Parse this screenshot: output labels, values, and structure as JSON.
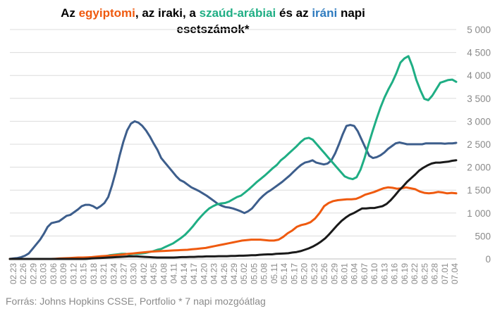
{
  "title": {
    "segments": [
      {
        "text": "Az ",
        "color": "#000000"
      },
      {
        "text": "egyiptomi",
        "color": "#ef5a0f"
      },
      {
        "text": ", az iraki, a ",
        "color": "#000000"
      },
      {
        "text": "szaúd-arábiai",
        "color": "#1fae84"
      },
      {
        "text": " és az ",
        "color": "#000000"
      },
      {
        "text": "iráni",
        "color": "#2e7bbf"
      },
      {
        "text": " napi",
        "color": "#000000"
      }
    ],
    "line2": "esetszámok*"
  },
  "source": "Forrás: Johns Hopkins CSSE, Portfolio   * 7 napi mozgóátlag",
  "chart_data": {
    "type": "line",
    "title": "Az egyiptomi, az iraki, a szaúd-arábiai és az iráni napi esetszámok*",
    "x_tick_labels": [
      "02.23",
      "02.26",
      "02.29",
      "03.03",
      "03.06",
      "03.09",
      "03.12",
      "03.15",
      "03.18",
      "03.21",
      "03.24",
      "03.27",
      "03.30",
      "04.02",
      "04.05",
      "04.08",
      "04.11",
      "04.14",
      "04.17",
      "04.20",
      "04.23",
      "04.26",
      "04.29",
      "05.02",
      "05.05",
      "05.08",
      "05.11",
      "05.14",
      "05.17",
      "05.20",
      "05.23",
      "05.26",
      "05.29",
      "06.01",
      "06.04",
      "06.07",
      "06.10",
      "06.13",
      "06.16",
      "06.19",
      "06.22",
      "06.25",
      "06.28",
      "07.01",
      "07.04"
    ],
    "ylim": [
      0,
      5000
    ],
    "y_ticks": [
      0,
      500,
      1000,
      1500,
      2000,
      2500,
      3000,
      3500,
      4000,
      4500,
      5000
    ],
    "y_tick_labels": [
      "0",
      "500",
      "1 000",
      "1 500",
      "2 000",
      "2 500",
      "3 000",
      "3 500",
      "4 000",
      "4 500",
      "5 000"
    ],
    "y_axis_position": "right",
    "grid": true,
    "series": [
      {
        "key": "iran",
        "color": "#3d5e8c",
        "values": [
          0,
          10,
          20,
          40,
          70,
          120,
          220,
          320,
          420,
          550,
          700,
          780,
          800,
          820,
          880,
          940,
          960,
          1020,
          1080,
          1150,
          1180,
          1180,
          1150,
          1100,
          1150,
          1220,
          1350,
          1600,
          1900,
          2250,
          2550,
          2800,
          2950,
          3000,
          2970,
          2900,
          2800,
          2670,
          2520,
          2380,
          2200,
          2100,
          2000,
          1900,
          1800,
          1720,
          1680,
          1620,
          1560,
          1520,
          1480,
          1430,
          1380,
          1320,
          1260,
          1200,
          1160,
          1130,
          1120,
          1100,
          1070,
          1040,
          1000,
          1040,
          1100,
          1200,
          1300,
          1380,
          1450,
          1500,
          1560,
          1620,
          1680,
          1750,
          1820,
          1900,
          1980,
          2050,
          2100,
          2120,
          2150,
          2100,
          2080,
          2060,
          2080,
          2150,
          2300,
          2500,
          2720,
          2900,
          2920,
          2900,
          2780,
          2600,
          2420,
          2250,
          2200,
          2220,
          2260,
          2320,
          2400,
          2460,
          2520,
          2540,
          2520,
          2500,
          2500,
          2500,
          2500,
          2500,
          2520,
          2520,
          2520,
          2520,
          2520,
          2510,
          2520,
          2520,
          2530
        ]
      },
      {
        "key": "saudi",
        "color": "#1fae84",
        "values": [
          0,
          0,
          0,
          0,
          0,
          0,
          0,
          0,
          0,
          0,
          0,
          0,
          0,
          0,
          0,
          0,
          0,
          0,
          0,
          0,
          10,
          20,
          30,
          50,
          60,
          80,
          90,
          100,
          110,
          110,
          100,
          110,
          110,
          120,
          130,
          150,
          170,
          200,
          220,
          260,
          300,
          340,
          400,
          460,
          530,
          620,
          720,
          830,
          930,
          1020,
          1100,
          1150,
          1190,
          1210,
          1220,
          1250,
          1300,
          1350,
          1380,
          1450,
          1520,
          1600,
          1680,
          1750,
          1820,
          1900,
          1980,
          2050,
          2150,
          2220,
          2300,
          2380,
          2460,
          2550,
          2620,
          2640,
          2600,
          2500,
          2400,
          2300,
          2200,
          2100,
          2000,
          1900,
          1800,
          1760,
          1740,
          1780,
          1950,
          2200,
          2500,
          2780,
          3050,
          3300,
          3520,
          3700,
          3860,
          4050,
          4280,
          4370,
          4420,
          4200,
          3900,
          3680,
          3490,
          3460,
          3560,
          3700,
          3840,
          3870,
          3900,
          3910,
          3860
        ]
      },
      {
        "key": "egypt",
        "color": "#ef5a0f",
        "values": [
          0,
          0,
          0,
          0,
          0,
          0,
          0,
          0,
          0,
          0,
          5,
          10,
          15,
          20,
          25,
          30,
          30,
          35,
          40,
          50,
          60,
          65,
          70,
          80,
          90,
          100,
          110,
          120,
          130,
          140,
          150,
          160,
          165,
          170,
          175,
          180,
          185,
          190,
          195,
          200,
          210,
          220,
          230,
          240,
          260,
          280,
          300,
          320,
          340,
          360,
          380,
          400,
          410,
          420,
          420,
          420,
          410,
          400,
          400,
          420,
          480,
          560,
          620,
          700,
          740,
          760,
          800,
          880,
          1000,
          1150,
          1220,
          1260,
          1280,
          1290,
          1300,
          1300,
          1310,
          1350,
          1400,
          1430,
          1460,
          1500,
          1540,
          1560,
          1550,
          1530,
          1540,
          1560,
          1540,
          1520,
          1470,
          1440,
          1430,
          1440,
          1460,
          1450,
          1430,
          1440,
          1430
        ]
      },
      {
        "key": "iraq",
        "color": "#1a1a1a",
        "values": [
          0,
          0,
          0,
          0,
          0,
          0,
          0,
          0,
          0,
          0,
          0,
          0,
          0,
          0,
          0,
          0,
          0,
          0,
          0,
          5,
          10,
          15,
          20,
          25,
          30,
          35,
          40,
          45,
          50,
          55,
          55,
          55,
          50,
          45,
          40,
          35,
          30,
          30,
          30,
          30,
          30,
          35,
          40,
          40,
          45,
          45,
          50,
          50,
          55,
          55,
          55,
          60,
          60,
          60,
          65,
          65,
          70,
          70,
          75,
          80,
          80,
          90,
          95,
          100,
          100,
          110,
          115,
          120,
          125,
          140,
          150,
          170,
          200,
          230,
          270,
          320,
          380,
          450,
          540,
          640,
          740,
          830,
          900,
          960,
          1000,
          1050,
          1100,
          1100,
          1110,
          1110,
          1130,
          1150,
          1200,
          1280,
          1380,
          1490,
          1580,
          1680,
          1760,
          1840,
          1930,
          1990,
          2040,
          2080,
          2100,
          2100,
          2110,
          2120,
          2140,
          2150
        ]
      }
    ]
  }
}
